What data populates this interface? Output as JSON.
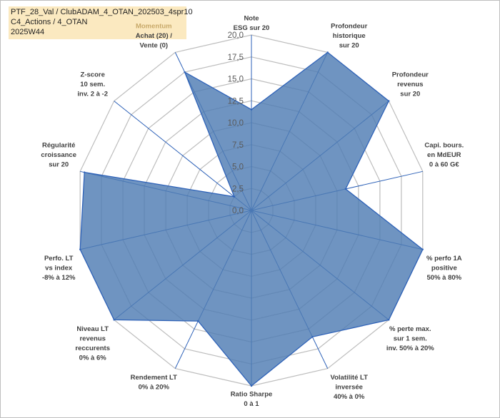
{
  "title": {
    "line1": "PTF_28_Val / ClubADAM_4_OTAN_202503_4spr10",
    "line2": "C4_Actions / 4_OTAN",
    "line3": "2025W44"
  },
  "colors": {
    "fill": "#4f7cb3",
    "stroke": "#2e62b8",
    "grid": "#bdbdbd",
    "axis": "#2e62b8",
    "title_bg": "#fbe9c0",
    "highlight_label": "#c8a96a"
  },
  "chart_data": {
    "type": "radar",
    "title": "",
    "range": [
      0,
      20
    ],
    "ticks": [
      "0,0",
      "2,5",
      "5,0",
      "7,5",
      "10,0",
      "12,5",
      "15,0",
      "17,5",
      "20,0"
    ],
    "grid": true,
    "axes": [
      {
        "lines": [
          "Note",
          "ESG sur 20"
        ]
      },
      {
        "lines": [
          "Profondeur",
          "historique",
          "sur 20"
        ]
      },
      {
        "lines": [
          "Profondeur",
          "revenus",
          "sur 20"
        ]
      },
      {
        "lines": [
          "Capi. bours.",
          "en MdEUR",
          "0 à 60 G€"
        ]
      },
      {
        "lines": [
          "% perfo 1A",
          "positive",
          "50% à 80%"
        ]
      },
      {
        "lines": [
          "% perte max.",
          "sur 1 sem.",
          "inv. 50% à 20%"
        ]
      },
      {
        "lines": [
          "Volatilité LT",
          "inversée",
          "40% à 0%"
        ]
      },
      {
        "lines": [
          "Ratio Sharpe",
          "0 à 1"
        ]
      },
      {
        "lines": [
          "Rendement LT",
          "0% à 20%"
        ]
      },
      {
        "lines": [
          "Niveau LT",
          "revenus",
          "reccurents",
          "0% à 6%"
        ]
      },
      {
        "lines": [
          "Perfo. LT",
          "vs index",
          "-8% à 12%"
        ]
      },
      {
        "lines": [
          "Régularité",
          "croissance",
          "sur 20"
        ]
      },
      {
        "lines": [
          "Z-score",
          "10 sem.",
          "inv. 2 à -2"
        ]
      },
      {
        "lines": [
          "Momentum",
          "Achat (20) /",
          "Vente (0)"
        ],
        "highlight_first": true
      }
    ],
    "series": [
      {
        "values": [
          11.5,
          20,
          20,
          11,
          20,
          20,
          16,
          20,
          14,
          20,
          20,
          19.5,
          2.5,
          17.5
        ]
      }
    ]
  }
}
